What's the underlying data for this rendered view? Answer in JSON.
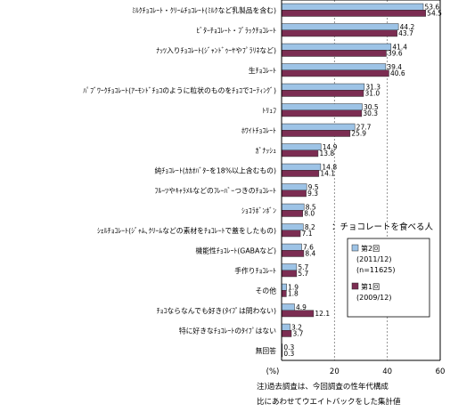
{
  "chart_data": {
    "type": "bar",
    "orientation": "horizontal",
    "categories": [
      "ﾐﾙｸﾁｮｺﾚｰﾄ・ｸﾘｰﾑﾁｮｺﾚｰﾄ(ﾐﾙｸなど乳製品を含む)",
      "ﾋﾞﾀｰﾁｮｺﾚｰﾄ・ﾌﾞﾗｯｸﾁｮｺﾚｰﾄ",
      "ﾅｯﾂ入りﾁｮｺﾚｰﾄ(ｼﾞｬﾝﾄﾞｩｰﾔやﾌﾟﾗﾘﾈなど)",
      "生ﾁｮｺﾚｰﾄ",
      "ﾊﾟﾌﾞﾜｰｸﾁｮｺﾚｰﾄ(ｱｰﾓﾝﾄﾞﾁｮｺのように粒状のものをﾁｮｺでｺｰﾃｨﾝｸﾞ)",
      "ﾄﾘｭﾌ",
      "ﾎﾜｲﾄﾁｮｺﾚｰﾄ",
      "ｶﾞﾅｯｼｭ",
      "純ﾁｮｺﾚｰﾄ(ｶｶｵﾊﾞﾀｰを18%以上含むもの)",
      "ﾌﾙｰﾂやｷｬﾗﾒﾙなどのﾌﾚｰﾊﾞｰつきのﾁｮｺﾚｰﾄ",
      "ｼｮｺﾗﾎﾞﾝﾎﾞﾝ",
      "ｼｪﾙﾁｮｺﾚｰﾄ(ｼﾞｬﾑ､ｸﾘｰﾑなどの素材をﾁｮｺﾚｰﾄで蓋をしたもの)",
      "機能性ﾁｮｺﾚｰﾄ(GABAなど)",
      "手作りﾁｮｺﾚｰﾄ",
      "その他",
      "ﾁｮｺならなんでも好き(ﾀｲﾌﾟは問わない)",
      "特に好きなﾁｮｺﾚｰﾄのﾀｲﾌﾟはない",
      "無回答"
    ],
    "series": [
      {
        "name": "第2回 (2011/12) (n=11625)",
        "color": "#9dc3e6",
        "values": [
          53.6,
          44.2,
          41.4,
          39.4,
          31.3,
          30.5,
          27.7,
          14.9,
          14.8,
          9.5,
          8.5,
          8.2,
          7.6,
          5.7,
          1.9,
          4.9,
          3.2,
          0.3
        ]
      },
      {
        "name": "第1回 (2009/12)",
        "color": "#7b2d52",
        "values": [
          54.5,
          43.7,
          39.6,
          40.6,
          31.0,
          30.3,
          25.9,
          13.8,
          14.1,
          9.3,
          8.0,
          7.1,
          8.4,
          5.7,
          1.8,
          12.1,
          3.7,
          0.3
        ]
      }
    ],
    "xlim": [
      0,
      60
    ],
    "xticks": [
      0,
      20,
      40,
      60
    ],
    "xlabel": "(%)",
    "grid": "dashed vertical at 20 and 40",
    "legend": {
      "placement": "right-middle",
      "title": "：チョコレートを食べる人",
      "entries": [
        {
          "lines": [
            "第2回",
            "(2011/12)",
            "(n=11625)"
          ]
        },
        {
          "lines": [
            "第1回",
            "(2009/12)"
          ]
        }
      ]
    },
    "footnote": [
      "注)過去調査は、今回調査の性年代構成",
      "比にあわせてウエイトバックをした集計値"
    ]
  }
}
